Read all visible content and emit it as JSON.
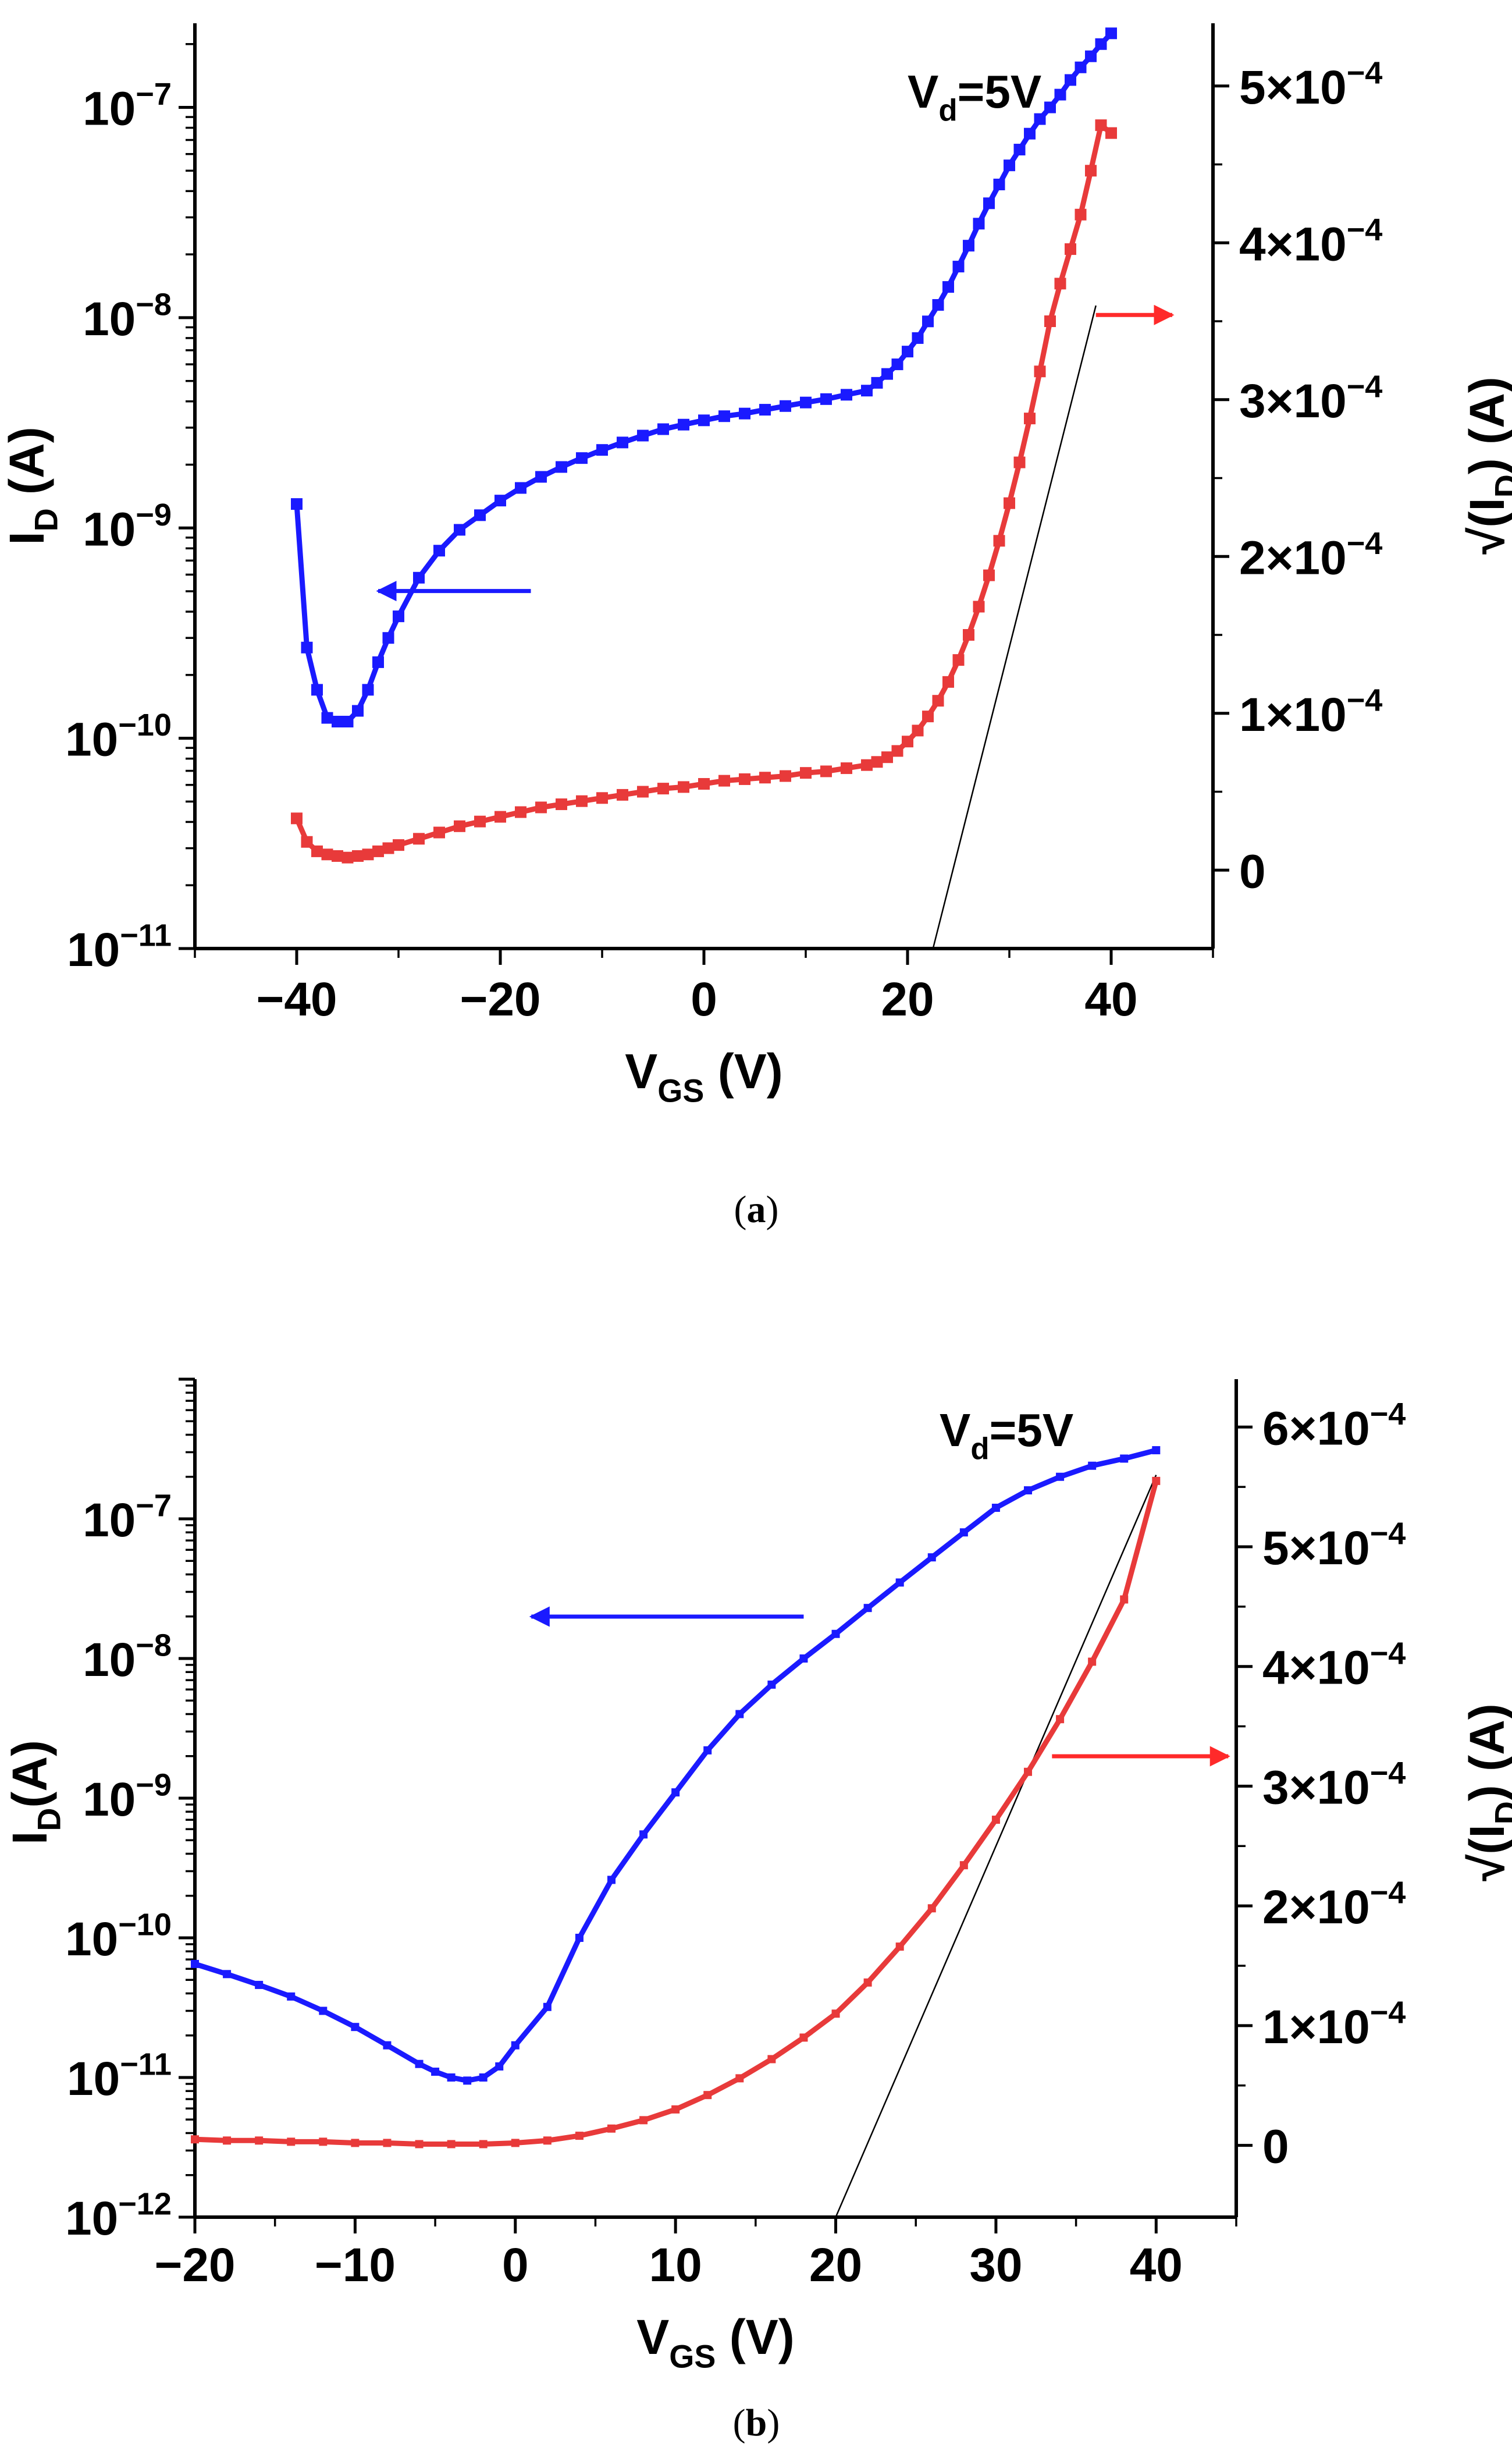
{
  "chart_data": [
    {
      "panel": "a",
      "type": "line",
      "caption": "(a)",
      "caption_letter": "a",
      "annotation": {
        "main": "V",
        "sub": "d",
        "rest": "=5V"
      },
      "xlabel": {
        "main": "V",
        "sub": "GS",
        "rest": " (V)"
      },
      "ylabel_left": {
        "main": "I",
        "sub": "D",
        "rest": " (A)"
      },
      "ylabel_right": {
        "pre": "√(I",
        "sub": "D",
        "rest": ") (A)"
      },
      "xlim": [
        -50,
        50
      ],
      "ylim_left_log10": [
        -11,
        -6.6
      ],
      "ylim_right": [
        -5e-05,
        0.00054
      ],
      "x_ticks": [
        -40,
        -20,
        0,
        20,
        40
      ],
      "x_tick_labels": [
        "−40",
        "−20",
        "0",
        "20",
        "40"
      ],
      "y_left_ticks": [
        {
          "exp": -11,
          "label": "10",
          "sup": "−11"
        },
        {
          "exp": -10,
          "label": "10",
          "sup": "−10"
        },
        {
          "exp": -9,
          "label": "10",
          "sup": "−9"
        },
        {
          "exp": -8,
          "label": "10",
          "sup": "−8"
        },
        {
          "exp": -7,
          "label": "10",
          "sup": "−7"
        }
      ],
      "y_right_ticks": [
        {
          "value": 0,
          "label": "0",
          "sup": ""
        },
        {
          "value": 0.0001,
          "label": "1×10",
          "sup": "−4"
        },
        {
          "value": 0.0002,
          "label": "2×10",
          "sup": "−4"
        },
        {
          "value": 0.0003,
          "label": "3×10",
          "sup": "−4"
        },
        {
          "value": 0.0004,
          "label": "4×10",
          "sup": "−4"
        },
        {
          "value": 0.0005,
          "label": "5×10",
          "sup": "−4"
        }
      ],
      "arrows": [
        {
          "color": "#1a1aff",
          "from_x": -17,
          "to_x": -32,
          "log10_y": -9.3,
          "axis": "left"
        },
        {
          "color": "#ff2a2a",
          "from_x": 38.5,
          "to_x": 46,
          "value_y": 0.000354,
          "axis": "right"
        }
      ],
      "fit_line": {
        "x1": 22.5,
        "y1": -5e-05,
        "x2": 38.5,
        "y2": 0.00036,
        "axis": "right"
      },
      "series": [
        {
          "name": "I_D (log, left axis)",
          "axis": "left",
          "scale": "log",
          "color": "#1a1aff",
          "x": [
            -40,
            -39,
            -38,
            -37,
            -36,
            -35,
            -34,
            -33,
            -32,
            -31,
            -30,
            -28,
            -26,
            -24,
            -22,
            -20,
            -18,
            -16,
            -14,
            -12,
            -10,
            -8,
            -6,
            -4,
            -2,
            0,
            2,
            4,
            6,
            8,
            10,
            12,
            14,
            16,
            17,
            18,
            19,
            20,
            21,
            22,
            23,
            24,
            25,
            26,
            27,
            28,
            29,
            30,
            31,
            32,
            33,
            34,
            35,
            36,
            37,
            38,
            39,
            40
          ],
          "y": [
            1.3e-09,
            2.7e-10,
            1.7e-10,
            1.25e-10,
            1.2e-10,
            1.2e-10,
            1.35e-10,
            1.7e-10,
            2.3e-10,
            3e-10,
            3.8e-10,
            5.8e-10,
            7.8e-10,
            9.8e-10,
            1.15e-09,
            1.35e-09,
            1.55e-09,
            1.75e-09,
            1.95e-09,
            2.15e-09,
            2.35e-09,
            2.55e-09,
            2.75e-09,
            2.95e-09,
            3.1e-09,
            3.25e-09,
            3.4e-09,
            3.5e-09,
            3.65e-09,
            3.8e-09,
            3.95e-09,
            4.1e-09,
            4.3e-09,
            4.5e-09,
            4.9e-09,
            5.4e-09,
            6e-09,
            6.9e-09,
            8e-09,
            9.6e-09,
            1.15e-08,
            1.4e-08,
            1.75e-08,
            2.2e-08,
            2.8e-08,
            3.5e-08,
            4.3e-08,
            5.3e-08,
            6.3e-08,
            7.5e-08,
            8.8e-08,
            1e-07,
            1.15e-07,
            1.35e-07,
            1.55e-07,
            1.75e-07,
            2e-07,
            2.25e-07
          ]
        },
        {
          "name": "√(I_D) (linear, right axis)",
          "axis": "right",
          "scale": "linear",
          "color": "#e83a3a",
          "x": [
            -40,
            -39,
            -38,
            -37,
            -36,
            -35,
            -34,
            -33,
            -32,
            -31,
            -30,
            -28,
            -26,
            -24,
            -22,
            -20,
            -18,
            -16,
            -14,
            -12,
            -10,
            -8,
            -6,
            -4,
            -2,
            0,
            2,
            4,
            6,
            8,
            10,
            12,
            14,
            16,
            17,
            18,
            19,
            20,
            21,
            22,
            23,
            24,
            25,
            26,
            27,
            28,
            29,
            30,
            31,
            32,
            33,
            34,
            35,
            36,
            37,
            38,
            39,
            40
          ],
          "y": [
            3.3e-05,
            1.8e-05,
            1.2e-05,
            1e-05,
            9e-06,
            8e-06,
            9e-06,
            1e-05,
            1.2e-05,
            1.4e-05,
            1.6e-05,
            2e-05,
            2.4e-05,
            2.8e-05,
            3.1e-05,
            3.4e-05,
            3.7e-05,
            4e-05,
            4.2e-05,
            4.4e-05,
            4.6e-05,
            4.8e-05,
            5e-05,
            5.2e-05,
            5.3e-05,
            5.5e-05,
            5.7e-05,
            5.8e-05,
            5.9e-05,
            6e-05,
            6.2e-05,
            6.3e-05,
            6.5e-05,
            6.7e-05,
            6.9e-05,
            7.2e-05,
            7.6e-05,
            8.2e-05,
            8.9e-05,
            9.8e-05,
            0.000108,
            0.00012,
            0.000134,
            0.00015,
            0.000168,
            0.000188,
            0.00021,
            0.000234,
            0.00026,
            0.000288,
            0.000318,
            0.00035,
            0.000374,
            0.000396,
            0.000418,
            0.000446,
            0.000475,
            0.00047
          ]
        }
      ]
    },
    {
      "panel": "b",
      "type": "line",
      "caption": "(b)",
      "caption_letter": "b",
      "annotation": {
        "main": "V",
        "sub": "d",
        "rest": "=5V"
      },
      "xlabel": {
        "main": "V",
        "sub": "GS",
        "rest": " (V)"
      },
      "ylabel_left": {
        "main": "I",
        "sub": "D",
        "rest": "(A)"
      },
      "ylabel_right": {
        "pre": "√(I",
        "sub": "D",
        "rest": ") (A)"
      },
      "xlim": [
        -20,
        45
      ],
      "ylim_left_log10": [
        -12,
        -6.0
      ],
      "ylim_right": [
        -6e-05,
        0.00064
      ],
      "x_ticks": [
        -20,
        -10,
        0,
        10,
        20,
        30,
        40
      ],
      "x_tick_labels": [
        "−20",
        "−10",
        "0",
        "10",
        "20",
        "30",
        "40"
      ],
      "y_left_ticks": [
        {
          "exp": -12,
          "label": "10",
          "sup": "−12"
        },
        {
          "exp": -11,
          "label": "10",
          "sup": "−11"
        },
        {
          "exp": -10,
          "label": "10",
          "sup": "−10"
        },
        {
          "exp": -9,
          "label": "10",
          "sup": "−9"
        },
        {
          "exp": -8,
          "label": "10",
          "sup": "−8"
        },
        {
          "exp": -7,
          "label": "10",
          "sup": "−7"
        }
      ],
      "y_right_ticks": [
        {
          "value": 0,
          "label": "0",
          "sup": ""
        },
        {
          "value": 0.0001,
          "label": "1×10",
          "sup": "−4"
        },
        {
          "value": 0.0002,
          "label": "2×10",
          "sup": "−4"
        },
        {
          "value": 0.0003,
          "label": "3×10",
          "sup": "−4"
        },
        {
          "value": 0.0004,
          "label": "4×10",
          "sup": "−4"
        },
        {
          "value": 0.0005,
          "label": "5×10",
          "sup": "−4"
        },
        {
          "value": 0.0006,
          "label": "6×10",
          "sup": "−4"
        }
      ],
      "arrows": [
        {
          "color": "#1a1aff",
          "from_x": 18,
          "to_x": 1,
          "log10_y": -7.7,
          "axis": "left"
        },
        {
          "color": "#ff2a2a",
          "from_x": 33.5,
          "to_x": 44.5,
          "value_y": 0.000325,
          "axis": "right"
        }
      ],
      "fit_line": {
        "x1": 20.0,
        "y1": -6e-05,
        "x2": 40.0,
        "y2": 0.00056,
        "axis": "right"
      },
      "series": [
        {
          "name": "I_D (log, left axis)",
          "axis": "left",
          "scale": "log",
          "color": "#1a1aff",
          "x": [
            -20,
            -18,
            -16,
            -14,
            -12,
            -10,
            -8,
            -6,
            -5,
            -4,
            -3,
            -2,
            -1,
            0,
            2,
            4,
            6,
            8,
            10,
            12,
            14,
            16,
            18,
            20,
            22,
            24,
            26,
            28,
            30,
            32,
            34,
            36,
            38,
            40
          ],
          "y": [
            6.5e-11,
            5.5e-11,
            4.6e-11,
            3.8e-11,
            3e-11,
            2.3e-11,
            1.7e-11,
            1.25e-11,
            1.1e-11,
            1e-11,
            9.5e-12,
            1e-11,
            1.2e-11,
            1.7e-11,
            3.2e-11,
            1e-10,
            2.6e-10,
            5.5e-10,
            1.1e-09,
            2.2e-09,
            4e-09,
            6.5e-09,
            1e-08,
            1.5e-08,
            2.3e-08,
            3.5e-08,
            5.3e-08,
            8e-08,
            1.2e-07,
            1.6e-07,
            2e-07,
            2.4e-07,
            2.7e-07,
            3.1e-07
          ]
        },
        {
          "name": "√(I_D) (linear, right axis)",
          "axis": "right",
          "scale": "linear",
          "color": "#e83a3a",
          "x": [
            -20,
            -18,
            -16,
            -14,
            -12,
            -10,
            -8,
            -6,
            -4,
            -2,
            0,
            2,
            4,
            6,
            8,
            10,
            12,
            14,
            16,
            18,
            20,
            22,
            24,
            26,
            28,
            30,
            32,
            34,
            36,
            38,
            40
          ],
          "y": [
            5e-06,
            4e-06,
            4e-06,
            3e-06,
            3e-06,
            2e-06,
            2e-06,
            1e-06,
            1e-06,
            1e-06,
            2e-06,
            4e-06,
            8e-06,
            1.4e-05,
            2.1e-05,
            3e-05,
            4.2e-05,
            5.6e-05,
            7.2e-05,
            9e-05,
            0.00011,
            0.000136,
            0.000166,
            0.000198,
            0.000234,
            0.000272,
            0.000312,
            0.000356,
            0.000404,
            0.000456,
            0.000555
          ]
        }
      ]
    }
  ]
}
